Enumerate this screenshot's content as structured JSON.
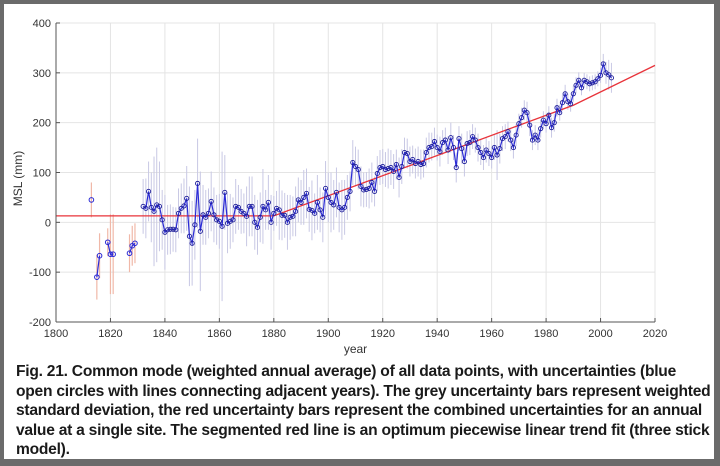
{
  "caption": "Fig. 21. Common mode (weighted annual average) of all data points, with uncertainties (blue open circles with lines connecting adjacent years). The grey uncertainty bars represent weighted standard deviation, the red uncertainty bars represent the combined uncertainties for an annual value at a single site. The  segmented red line is an optimum piecewise linear trend fit (three stick model).",
  "chart_data": {
    "type": "line",
    "title": "",
    "xlabel": "year",
    "ylabel": "MSL (mm)",
    "xlim": [
      1800,
      2020
    ],
    "ylim": [
      -200,
      400
    ],
    "xticks": [
      1800,
      1820,
      1840,
      1860,
      1880,
      1900,
      1920,
      1940,
      1960,
      1980,
      2000,
      2020
    ],
    "yticks": [
      -200,
      -100,
      0,
      100,
      200,
      300,
      400
    ],
    "grid": true,
    "colors": {
      "series": "#2b2bd6",
      "grey_bars": "#c8c8e4",
      "red_bars": "#f0b8a8",
      "trend": "#e8333a",
      "grid": "#e4e4e4",
      "axis": "#555555"
    },
    "early_points": {
      "description": "single-site annual values with red uncertainty bars",
      "x": [
        1813,
        1815,
        1816,
        1819,
        1820,
        1821,
        1827,
        1828,
        1829
      ],
      "y": [
        45,
        -110,
        -67,
        -40,
        -64,
        -64,
        -62,
        -47,
        -42
      ],
      "err": [
        35,
        45,
        45,
        28,
        80,
        80,
        38,
        40,
        40
      ],
      "segments": [
        [
          1813
        ],
        [
          1815,
          1816
        ],
        [
          1819,
          1820,
          1821
        ],
        [
          1827,
          1828,
          1829
        ]
      ]
    },
    "series": [
      {
        "name": "Common mode (weighted annual average)",
        "x_start": 1832,
        "x_end": 2018,
        "y": [
          32,
          28,
          62,
          30,
          22,
          35,
          32,
          5,
          -20,
          -15,
          -14,
          -14,
          -15,
          18,
          28,
          33,
          48,
          -28,
          -42,
          -5,
          78,
          -18,
          15,
          10,
          18,
          42,
          15,
          5,
          2,
          -8,
          60,
          -2,
          2,
          5,
          32,
          30,
          22,
          18,
          12,
          32,
          32,
          0,
          -10,
          10,
          32,
          25,
          40,
          0,
          18,
          28,
          25,
          14,
          14,
          0,
          10,
          12,
          22,
          45,
          40,
          50,
          58,
          26,
          24,
          18,
          40,
          25,
          10,
          68,
          50,
          40,
          35,
          60,
          30,
          25,
          30,
          50,
          62,
          120,
          112,
          106,
          72,
          65,
          66,
          68,
          80,
          62,
          98,
          110,
          112,
          106,
          108,
          110,
          102,
          116,
          90,
          112,
          140,
          138,
          122,
          126,
          118,
          122,
          116,
          118,
          140,
          150,
          152,
          162,
          150,
          142,
          160,
          165,
          145,
          170,
          150,
          110,
          168,
          148,
          122,
          158,
          160,
          172,
          165,
          150,
          140,
          130,
          145,
          138,
          130,
          150,
          135,
          148,
          168,
          172,
          182,
          165,
          150,
          175,
          198,
          210,
          225,
          220,
          195,
          165,
          175,
          165,
          188,
          205,
          198,
          215,
          190,
          200,
          230,
          220,
          240,
          258,
          242,
          238,
          258,
          275,
          285,
          270,
          285,
          282,
          278,
          280,
          282,
          288,
          295,
          318,
          300,
          296,
          290
        ],
        "err": [
          55,
          60,
          60,
          70,
          110,
          115,
          90,
          60,
          75,
          50,
          50,
          45,
          45,
          50,
          50,
          55,
          65,
          100,
          85,
          70,
          90,
          120,
          60,
          55,
          50,
          60,
          55,
          50,
          55,
          150,
          75,
          60,
          55,
          45,
          55,
          45,
          45,
          40,
          60,
          60,
          60,
          55,
          55,
          50,
          75,
          40,
          55,
          55,
          35,
          35,
          60,
          50,
          45,
          55,
          45,
          40,
          50,
          45,
          45,
          55,
          50,
          45,
          60,
          40,
          55,
          45,
          50,
          55,
          50,
          60,
          50,
          50,
          50,
          60,
          55,
          45,
          40,
          45,
          40,
          40,
          40,
          35,
          35,
          40,
          40,
          30,
          35,
          35,
          35,
          35,
          40,
          35,
          35,
          30,
          40,
          35,
          30,
          30,
          30,
          28,
          30,
          30,
          30,
          28,
          30,
          30,
          28,
          28,
          26,
          30,
          25,
          25,
          28,
          30,
          25,
          30,
          25,
          30,
          30,
          25,
          25,
          25,
          25,
          28,
          25,
          25,
          25,
          25,
          22,
          25,
          50,
          30,
          25,
          25,
          20,
          22,
          22,
          22,
          20,
          20,
          20,
          22,
          22,
          20,
          20,
          20,
          18,
          18,
          18,
          18,
          20,
          18,
          18,
          16,
          16,
          18,
          16,
          16,
          16,
          16,
          16,
          15,
          15,
          15,
          15,
          15,
          15,
          15,
          15,
          20,
          22,
          30,
          30
        ]
      }
    ],
    "trend": {
      "name": "Piecewise linear trend fit (three stick model)",
      "x": [
        1800,
        1880,
        1990,
        2020
      ],
      "y": [
        13,
        13,
        235,
        315
      ]
    }
  }
}
